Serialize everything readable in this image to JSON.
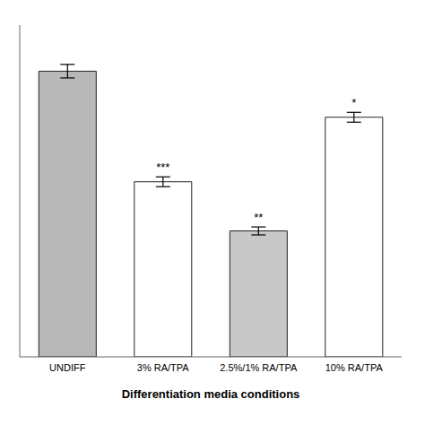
{
  "chart_data": {
    "type": "bar",
    "xlabel": "Differentiation  media  conditions",
    "categories": [
      "UNDIFF",
      "3% RA/TPA",
      "2.5%/1% RA/TPA",
      "10% RA/TPA"
    ],
    "values": [
      0.93,
      0.57,
      0.41,
      0.78
    ],
    "errors": [
      0.022,
      0.016,
      0.013,
      0.016
    ],
    "colors": [
      "#b8b8b8",
      "#ffffff",
      "#c8c8c8",
      "#ffffff"
    ],
    "annotations": [
      {
        "category": "3% RA/TPA",
        "text": "***"
      },
      {
        "category": "2.5%/1% RA/TPA",
        "text": "**"
      },
      {
        "category": "10% RA/TPA",
        "text": "*"
      }
    ],
    "ylim": [
      0,
      1.08
    ],
    "yticks": [],
    "tick_labels": "x",
    "grid": false
  }
}
